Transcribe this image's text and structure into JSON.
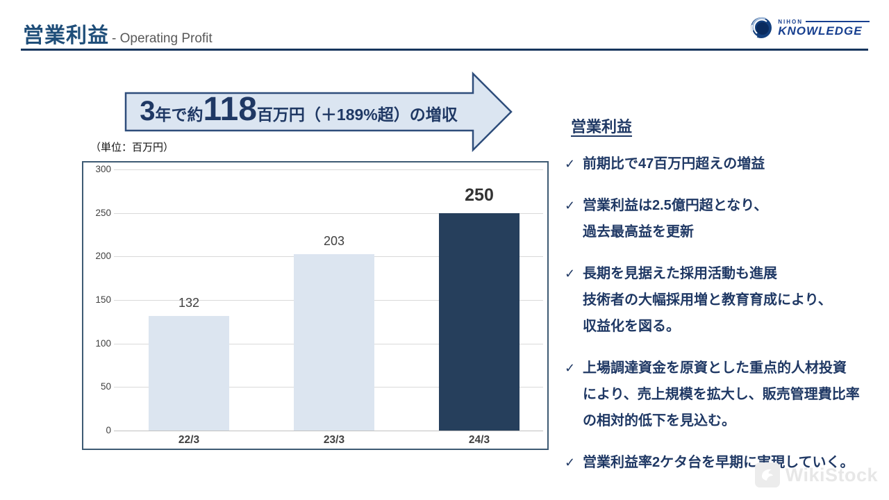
{
  "header": {
    "title_jp": "営業利益",
    "title_en": "- Operating Profit",
    "logo_top": "NIHON",
    "logo_main": "KNOWLEDGE"
  },
  "banner": {
    "prefix_large": "3",
    "prefix_small": "年で約",
    "number_large": "118",
    "suffix": "百万円（＋189%超）の増収"
  },
  "chart": {
    "unit_label": "（単位：百万円）"
  },
  "chart_data": {
    "type": "bar",
    "categories": [
      "22/3",
      "23/3",
      "24/3"
    ],
    "values": [
      132,
      203,
      250
    ],
    "value_labels": [
      "132",
      "203",
      "250"
    ],
    "yticks": [
      300,
      250,
      200,
      150,
      100,
      50,
      0
    ],
    "ylim": [
      0,
      300
    ],
    "unit": "百万円",
    "bar_colors": [
      "#dce5f0",
      "#dce5f0",
      "#263f5c"
    ],
    "highlight_index": 2,
    "grid": true,
    "legend": false
  },
  "panel": {
    "heading": "営業利益",
    "check_glyph": "✓",
    "bullets": [
      {
        "lines": [
          "前期比で47百万円超えの増益"
        ]
      },
      {
        "lines": [
          "営業利益は2.5億円超となり、",
          "過去最高益を更新"
        ]
      },
      {
        "lines": [
          "長期を見据えた採用活動も進展",
          "技術者の大幅採用増と教育育成により、",
          "収益化を図る。"
        ]
      },
      {
        "lines": [
          "上場調達資金を原資とした重点的人材投資",
          "により、売上規模を拡大し、販売管理費比率",
          "の相対的低下を見込む。"
        ]
      },
      {
        "lines": [
          "営業利益率2ケタ台を早期に実現していく。"
        ]
      }
    ]
  },
  "watermark": {
    "text": "WikiStock"
  },
  "colors": {
    "navy_text": "#1f3864",
    "title_navy": "#1f4e79",
    "title_gray": "#595959",
    "arrow_fill": "#dbe5f1",
    "arrow_stroke": "#2e4d7b",
    "bar_light": "#dce5f0",
    "bar_dark": "#263f5c",
    "chart_border": "#3d5a73",
    "gridline": "#d9d9d9"
  }
}
